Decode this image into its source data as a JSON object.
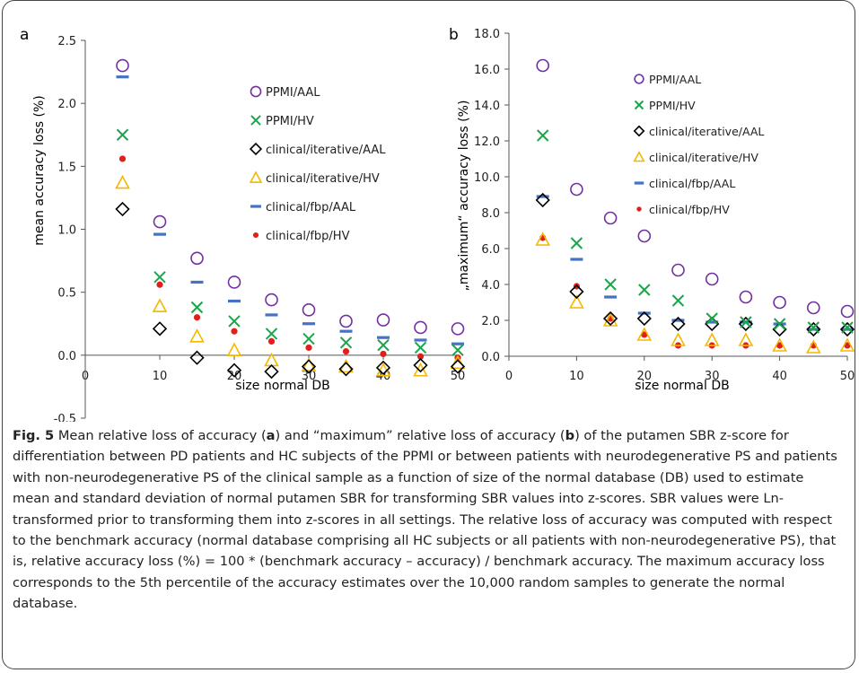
{
  "panel_a": {
    "label": "a",
    "ylabel": "mean accuracy loss (%)",
    "xlabel": "size normal DB",
    "x_ticks": [
      "0",
      "10",
      "20",
      "30",
      "40",
      "50"
    ],
    "y_ticks": [
      "-0.5",
      "0.0",
      "0.5",
      "1.0",
      "1.5",
      "2.0",
      "2.5"
    ],
    "legend": [
      "PPMI/AAL",
      "PPMI/HV",
      "clinical/iterative/AAL",
      "clinical/iterative/HV",
      "clinical/fbp/AAL",
      "clinical/fbp/HV"
    ]
  },
  "panel_b": {
    "label": "b",
    "ylabel": "„maximum“ accuracy loss (%)",
    "xlabel": "size normal DB",
    "x_ticks": [
      "0",
      "10",
      "20",
      "30",
      "40",
      "50"
    ],
    "y_ticks": [
      "0.0",
      "2.0",
      "4.0",
      "6.0",
      "8.0",
      "10.0",
      "12.0",
      "14.0",
      "16.0",
      "18.0"
    ],
    "legend": [
      "PPMI/AAL",
      "PPMI/HV",
      "clinical/iterative/AAL",
      "clinical/iterative/HV",
      "clinical/fbp/AAL",
      "clinical/fbp/HV"
    ]
  },
  "colors": {
    "ppmi_aal": "#7030a0",
    "ppmi_hv": "#1aa64a",
    "clinical_iterative_aal": "#000000",
    "clinical_iterative_hv": "#f5b800",
    "clinical_fbp_aal": "#4472c4",
    "clinical_fbp_hv": "#e0201b"
  },
  "caption": {
    "fig_label": "Fig. 5",
    "text_1": " Mean relative loss of accuracy (",
    "a": "a",
    "text_2": ") and “maximum” relative loss of accuracy (",
    "b": "b",
    "text_3": ") of the putamen SBR z-score for differentiation between PD patients and HC subjects of the PPMI or between patients with neurodegenerative PS and patients with non-neurodegenerative PS of the clinical sample as a function of size of the normal database (DB) used to estimate mean and standard deviation of normal putamen SBR for transforming SBR values into z-scores. SBR values were Ln-transformed prior to transforming them into z-scores in all settings. The relative loss of accuracy was computed with respect to the benchmark accuracy (normal database comprising all HC subjects or all patients with non-neurodegenerative PS), that is, relative accuracy loss (%) = 100 * (benchmark accuracy – accuracy) / benchmark accuracy. The maximum accuracy loss corresponds to the 5th percentile of the accuracy estimates over the 10,000 random samples to generate the normal database."
  },
  "chart_data": [
    {
      "type": "scatter",
      "panel": "a",
      "xlabel": "size normal DB",
      "ylabel": "mean accuracy loss (%)",
      "xlim": [
        0,
        50
      ],
      "ylim": [
        -0.5,
        2.5
      ],
      "legend_position": "top-right",
      "x": [
        5,
        10,
        15,
        20,
        25,
        30,
        35,
        40,
        45,
        50
      ],
      "series": [
        {
          "name": "PPMI/AAL",
          "marker": "circle",
          "values": [
            2.3,
            1.06,
            0.77,
            0.58,
            0.44,
            0.36,
            0.27,
            0.28,
            0.22,
            0.21
          ]
        },
        {
          "name": "PPMI/HV",
          "marker": "x",
          "values": [
            1.75,
            0.62,
            0.38,
            0.27,
            0.17,
            0.13,
            0.1,
            0.08,
            0.06,
            0.04
          ]
        },
        {
          "name": "clinical/iterative/AAL",
          "marker": "diamond",
          "values": [
            1.16,
            0.21,
            -0.02,
            -0.12,
            -0.13,
            -0.09,
            -0.11,
            -0.1,
            -0.08,
            -0.09
          ]
        },
        {
          "name": "clinical/iterative/HV",
          "marker": "triangle",
          "values": [
            1.37,
            0.39,
            0.15,
            0.04,
            -0.04,
            -0.08,
            -0.09,
            -0.12,
            -0.12,
            -0.06
          ]
        },
        {
          "name": "clinical/fbp/AAL",
          "marker": "dash",
          "values": [
            2.21,
            0.96,
            0.58,
            0.43,
            0.32,
            0.25,
            0.19,
            0.14,
            0.12,
            0.09
          ]
        },
        {
          "name": "clinical/fbp/HV",
          "marker": "dot",
          "values": [
            1.56,
            0.56,
            0.3,
            0.19,
            0.11,
            0.06,
            0.03,
            0.01,
            -0.01,
            -0.02
          ]
        }
      ]
    },
    {
      "type": "scatter",
      "panel": "b",
      "xlabel": "size normal DB",
      "ylabel": "„maximum“ accuracy loss (%)",
      "xlim": [
        0,
        50
      ],
      "ylim": [
        0,
        18
      ],
      "legend_position": "top-right",
      "x": [
        5,
        10,
        15,
        20,
        25,
        30,
        35,
        40,
        45,
        50
      ],
      "series": [
        {
          "name": "PPMI/AAL",
          "marker": "circle",
          "values": [
            16.2,
            9.3,
            7.7,
            6.7,
            4.8,
            4.3,
            3.3,
            3.0,
            2.7,
            2.5
          ]
        },
        {
          "name": "PPMI/HV",
          "marker": "x",
          "values": [
            12.3,
            6.3,
            4.0,
            3.7,
            3.1,
            2.1,
            1.9,
            1.8,
            1.6,
            1.6
          ]
        },
        {
          "name": "clinical/iterative/AAL",
          "marker": "diamond",
          "values": [
            8.7,
            3.6,
            2.1,
            2.1,
            1.8,
            1.8,
            1.8,
            1.5,
            1.5,
            1.5
          ]
        },
        {
          "name": "clinical/iterative/HV",
          "marker": "triangle",
          "values": [
            6.5,
            3.0,
            2.0,
            1.2,
            0.9,
            0.9,
            0.9,
            0.6,
            0.5,
            0.6
          ]
        },
        {
          "name": "clinical/fbp/AAL",
          "marker": "dash",
          "values": [
            8.9,
            5.4,
            3.3,
            2.4,
            2.0,
            1.9,
            1.9,
            1.8,
            1.5,
            1.5
          ]
        },
        {
          "name": "clinical/fbp/HV",
          "marker": "dot",
          "values": [
            6.6,
            3.9,
            2.1,
            1.2,
            0.6,
            0.6,
            0.6,
            0.6,
            0.6,
            0.6
          ]
        }
      ]
    }
  ]
}
